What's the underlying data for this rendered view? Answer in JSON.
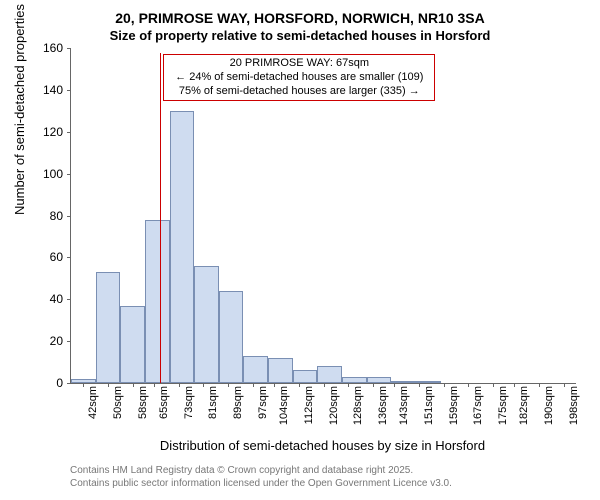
{
  "title_main": "20, PRIMROSE WAY, HORSFORD, NORWICH, NR10 3SA",
  "title_sub": "Size of property relative to semi-detached houses in Horsford",
  "ylabel": "Number of semi-detached properties",
  "xlabel": "Distribution of semi-detached houses by size in Horsford",
  "chart": {
    "type": "histogram",
    "ylim": [
      0,
      160
    ],
    "ytick_step": 20,
    "bar_fill": "#cfdcf0",
    "bar_stroke": "#7a8fb3",
    "background": "#ffffff",
    "axis_color": "#666666",
    "marker_color": "#cc0000",
    "marker_x": 67,
    "x_start": 38,
    "x_end": 202,
    "bar_width_sqm": 8,
    "bars": [
      {
        "x": 38,
        "count": 2
      },
      {
        "x": 46,
        "count": 53
      },
      {
        "x": 54,
        "count": 37
      },
      {
        "x": 62,
        "count": 78
      },
      {
        "x": 70,
        "count": 130
      },
      {
        "x": 78,
        "count": 56
      },
      {
        "x": 86,
        "count": 44
      },
      {
        "x": 94,
        "count": 13
      },
      {
        "x": 102,
        "count": 12
      },
      {
        "x": 110,
        "count": 6
      },
      {
        "x": 118,
        "count": 8
      },
      {
        "x": 126,
        "count": 3
      },
      {
        "x": 134,
        "count": 3
      },
      {
        "x": 142,
        "count": 1
      },
      {
        "x": 150,
        "count": 1
      },
      {
        "x": 158,
        "count": 0
      },
      {
        "x": 166,
        "count": 0
      },
      {
        "x": 174,
        "count": 0
      },
      {
        "x": 182,
        "count": 0
      },
      {
        "x": 190,
        "count": 0
      },
      {
        "x": 198,
        "count": 0
      }
    ],
    "xticks": [
      42,
      50,
      58,
      65,
      73,
      81,
      89,
      97,
      104,
      112,
      120,
      128,
      136,
      143,
      151,
      159,
      167,
      175,
      182,
      190,
      198
    ],
    "xtick_suffix": "sqm"
  },
  "annotation": {
    "line1": "20 PRIMROSE WAY: 67sqm",
    "line2": "← 24% of semi-detached houses are smaller (109)",
    "line3": "75% of semi-detached houses are larger (335) →",
    "border_color": "#cc0000",
    "fontsize": 11
  },
  "footer": {
    "line1": "Contains HM Land Registry data © Crown copyright and database right 2025.",
    "line2": "Contains public sector information licensed under the Open Government Licence v3.0.",
    "color": "#777777"
  }
}
